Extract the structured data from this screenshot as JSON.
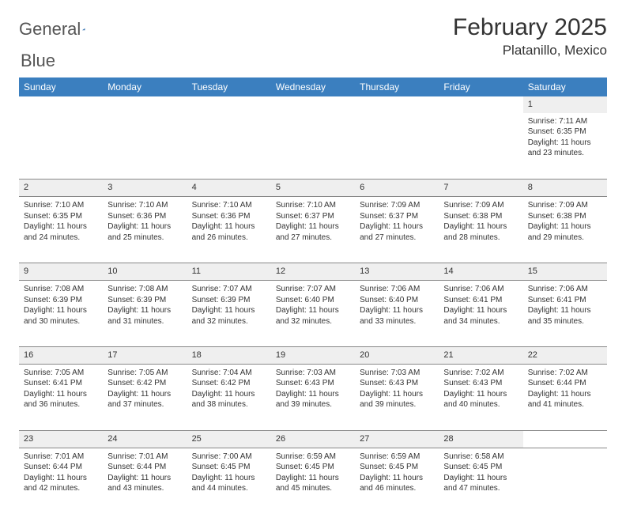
{
  "brand": {
    "word1": "General",
    "word2": "Blue"
  },
  "title": "February 2025",
  "location": "Platanillo, Mexico",
  "colors": {
    "header_bg": "#3b7fbf",
    "header_text": "#ffffff",
    "daynum_bg": "#efefef",
    "border": "#888888",
    "text": "#333333",
    "brand_blue": "#2f6fb0"
  },
  "day_headers": [
    "Sunday",
    "Monday",
    "Tuesday",
    "Wednesday",
    "Thursday",
    "Friday",
    "Saturday"
  ],
  "weeks": [
    [
      null,
      null,
      null,
      null,
      null,
      null,
      {
        "n": "1",
        "sunrise": "7:11 AM",
        "sunset": "6:35 PM",
        "dl": "11 hours and 23 minutes."
      }
    ],
    [
      {
        "n": "2",
        "sunrise": "7:10 AM",
        "sunset": "6:35 PM",
        "dl": "11 hours and 24 minutes."
      },
      {
        "n": "3",
        "sunrise": "7:10 AM",
        "sunset": "6:36 PM",
        "dl": "11 hours and 25 minutes."
      },
      {
        "n": "4",
        "sunrise": "7:10 AM",
        "sunset": "6:36 PM",
        "dl": "11 hours and 26 minutes."
      },
      {
        "n": "5",
        "sunrise": "7:10 AM",
        "sunset": "6:37 PM",
        "dl": "11 hours and 27 minutes."
      },
      {
        "n": "6",
        "sunrise": "7:09 AM",
        "sunset": "6:37 PM",
        "dl": "11 hours and 27 minutes."
      },
      {
        "n": "7",
        "sunrise": "7:09 AM",
        "sunset": "6:38 PM",
        "dl": "11 hours and 28 minutes."
      },
      {
        "n": "8",
        "sunrise": "7:09 AM",
        "sunset": "6:38 PM",
        "dl": "11 hours and 29 minutes."
      }
    ],
    [
      {
        "n": "9",
        "sunrise": "7:08 AM",
        "sunset": "6:39 PM",
        "dl": "11 hours and 30 minutes."
      },
      {
        "n": "10",
        "sunrise": "7:08 AM",
        "sunset": "6:39 PM",
        "dl": "11 hours and 31 minutes."
      },
      {
        "n": "11",
        "sunrise": "7:07 AM",
        "sunset": "6:39 PM",
        "dl": "11 hours and 32 minutes."
      },
      {
        "n": "12",
        "sunrise": "7:07 AM",
        "sunset": "6:40 PM",
        "dl": "11 hours and 32 minutes."
      },
      {
        "n": "13",
        "sunrise": "7:06 AM",
        "sunset": "6:40 PM",
        "dl": "11 hours and 33 minutes."
      },
      {
        "n": "14",
        "sunrise": "7:06 AM",
        "sunset": "6:41 PM",
        "dl": "11 hours and 34 minutes."
      },
      {
        "n": "15",
        "sunrise": "7:06 AM",
        "sunset": "6:41 PM",
        "dl": "11 hours and 35 minutes."
      }
    ],
    [
      {
        "n": "16",
        "sunrise": "7:05 AM",
        "sunset": "6:41 PM",
        "dl": "11 hours and 36 minutes."
      },
      {
        "n": "17",
        "sunrise": "7:05 AM",
        "sunset": "6:42 PM",
        "dl": "11 hours and 37 minutes."
      },
      {
        "n": "18",
        "sunrise": "7:04 AM",
        "sunset": "6:42 PM",
        "dl": "11 hours and 38 minutes."
      },
      {
        "n": "19",
        "sunrise": "7:03 AM",
        "sunset": "6:43 PM",
        "dl": "11 hours and 39 minutes."
      },
      {
        "n": "20",
        "sunrise": "7:03 AM",
        "sunset": "6:43 PM",
        "dl": "11 hours and 39 minutes."
      },
      {
        "n": "21",
        "sunrise": "7:02 AM",
        "sunset": "6:43 PM",
        "dl": "11 hours and 40 minutes."
      },
      {
        "n": "22",
        "sunrise": "7:02 AM",
        "sunset": "6:44 PM",
        "dl": "11 hours and 41 minutes."
      }
    ],
    [
      {
        "n": "23",
        "sunrise": "7:01 AM",
        "sunset": "6:44 PM",
        "dl": "11 hours and 42 minutes."
      },
      {
        "n": "24",
        "sunrise": "7:01 AM",
        "sunset": "6:44 PM",
        "dl": "11 hours and 43 minutes."
      },
      {
        "n": "25",
        "sunrise": "7:00 AM",
        "sunset": "6:45 PM",
        "dl": "11 hours and 44 minutes."
      },
      {
        "n": "26",
        "sunrise": "6:59 AM",
        "sunset": "6:45 PM",
        "dl": "11 hours and 45 minutes."
      },
      {
        "n": "27",
        "sunrise": "6:59 AM",
        "sunset": "6:45 PM",
        "dl": "11 hours and 46 minutes."
      },
      {
        "n": "28",
        "sunrise": "6:58 AM",
        "sunset": "6:45 PM",
        "dl": "11 hours and 47 minutes."
      },
      null
    ]
  ],
  "labels": {
    "sunrise": "Sunrise:",
    "sunset": "Sunset:",
    "daylight": "Daylight:"
  }
}
